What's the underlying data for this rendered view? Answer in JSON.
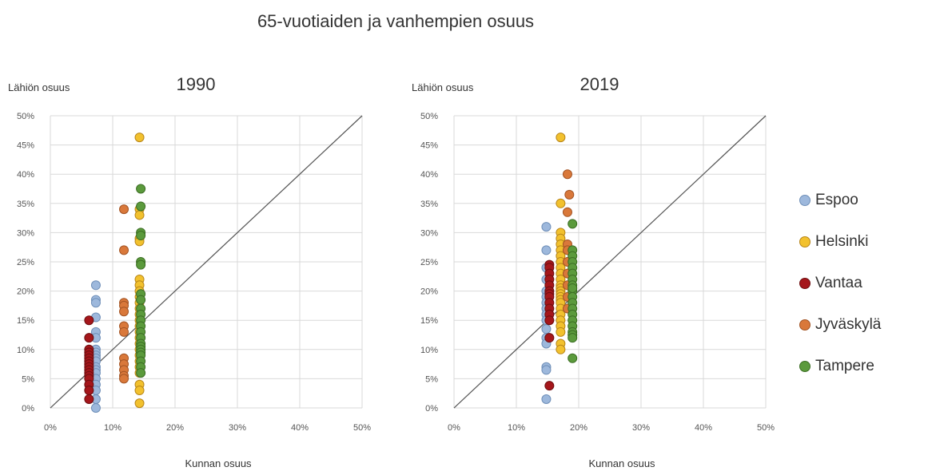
{
  "title": "65-vuotiaiden ja vanhempien osuus",
  "legend": [
    {
      "name": "Espoo",
      "color": "#9DB8DC",
      "edge": "#6F8FB8"
    },
    {
      "name": "Helsinki",
      "color": "#F2C12E",
      "edge": "#B8861A"
    },
    {
      "name": "Vantaa",
      "color": "#A5161B",
      "edge": "#6E0E10"
    },
    {
      "name": "Jyväskylä",
      "color": "#D9783A",
      "edge": "#A35424"
    },
    {
      "name": "Tampere",
      "color": "#5B9A3C",
      "edge": "#3C6E24"
    }
  ],
  "chart_data": [
    {
      "type": "scatter",
      "title": "1990",
      "xlabel": "Kunnan osuus",
      "ylabel": "Lähiön osuus",
      "xlim": [
        0,
        50
      ],
      "ylim": [
        0,
        50
      ],
      "xticks": [
        "0%",
        "10%",
        "20%",
        "30%",
        "40%",
        "50%"
      ],
      "yticks": [
        "0%",
        "5%",
        "10%",
        "15%",
        "20%",
        "25%",
        "30%",
        "35%",
        "40%",
        "45%",
        "50%"
      ],
      "grid": true,
      "reference_line": "y = x",
      "series": [
        {
          "name": "Espoo",
          "x": [
            7.3,
            7.3,
            7.3,
            7.3,
            7.3,
            7.3,
            7.3,
            7.3,
            7.3,
            7.3,
            7.3,
            7.3,
            7.3,
            7.3,
            7.3,
            7.3,
            7.3,
            7.3,
            7.3
          ],
          "y": [
            21.0,
            18.5,
            18.0,
            15.5,
            13.0,
            12.0,
            10.0,
            9.5,
            9.0,
            8.5,
            8.0,
            7.0,
            6.5,
            6.0,
            5.0,
            4.0,
            3.0,
            1.5,
            0.0
          ]
        },
        {
          "name": "Helsinki",
          "x": [
            14.3,
            14.3,
            14.3,
            14.3,
            14.3,
            14.3,
            14.3,
            14.3,
            14.3,
            14.3,
            14.3,
            14.3,
            14.3,
            14.3,
            14.3,
            14.3,
            14.3,
            14.3,
            14.3,
            14.3,
            14.3,
            14.3,
            14.3,
            14.3,
            14.3
          ],
          "y": [
            46.3,
            34.0,
            33.0,
            29.0,
            28.5,
            22.0,
            21.0,
            20.0,
            19.0,
            18.0,
            17.0,
            16.0,
            15.0,
            14.0,
            13.0,
            12.0,
            11.0,
            10.0,
            9.0,
            8.0,
            7.0,
            6.0,
            4.0,
            3.0,
            0.8
          ]
        },
        {
          "name": "Vantaa",
          "x": [
            6.2,
            6.2,
            6.2,
            6.2,
            6.2,
            6.2,
            6.2,
            6.2,
            6.2,
            6.2,
            6.2,
            6.2,
            6.2,
            6.2,
            6.2,
            6.2
          ],
          "y": [
            15.0,
            12.0,
            10.0,
            9.5,
            9.0,
            8.5,
            8.0,
            7.5,
            7.0,
            6.5,
            6.0,
            5.5,
            5.0,
            4.0,
            3.0,
            1.5
          ]
        },
        {
          "name": "Jyväskylä",
          "x": [
            11.8,
            11.8,
            11.8,
            11.8,
            11.8,
            11.8,
            11.8,
            11.8,
            11.8,
            11.8,
            11.8,
            11.8
          ],
          "y": [
            34.0,
            27.0,
            18.0,
            17.5,
            16.5,
            14.0,
            13.0,
            8.5,
            7.5,
            6.5,
            5.5,
            5.0
          ]
        },
        {
          "name": "Tampere",
          "x": [
            14.5,
            14.5,
            14.5,
            14.5,
            14.5,
            14.5,
            14.5,
            14.5,
            14.5,
            14.5,
            14.5,
            14.5,
            14.5,
            14.5,
            14.5,
            14.5,
            14.5,
            14.5,
            14.5,
            14.5,
            14.5,
            14.5
          ],
          "y": [
            37.5,
            34.5,
            30.0,
            29.5,
            25.0,
            24.5,
            19.5,
            18.5,
            17.0,
            16.0,
            15.0,
            14.0,
            13.0,
            12.0,
            11.0,
            10.5,
            10.0,
            9.5,
            9.0,
            8.0,
            7.0,
            6.0
          ]
        }
      ]
    },
    {
      "type": "scatter",
      "title": "2019",
      "xlabel": "Kunnan osuus",
      "ylabel": "Lähiön osuus",
      "xlim": [
        0,
        50
      ],
      "ylim": [
        0,
        50
      ],
      "xticks": [
        "0%",
        "10%",
        "20%",
        "30%",
        "40%",
        "50%"
      ],
      "yticks": [
        "0%",
        "5%",
        "10%",
        "15%",
        "20%",
        "25%",
        "30%",
        "35%",
        "40%",
        "45%",
        "50%"
      ],
      "grid": true,
      "reference_line": "y = x",
      "series": [
        {
          "name": "Espoo",
          "x": [
            14.8,
            14.8,
            14.8,
            14.8,
            14.8,
            14.8,
            14.8,
            14.8,
            14.8,
            14.8,
            14.8,
            14.8,
            14.8,
            14.8,
            14.8,
            14.8
          ],
          "y": [
            31.0,
            27.0,
            24.0,
            22.0,
            20.0,
            19.0,
            18.0,
            17.0,
            16.0,
            15.0,
            13.5,
            12.0,
            11.0,
            7.0,
            6.5,
            1.5
          ]
        },
        {
          "name": "Helsinki",
          "x": [
            17.1,
            17.1,
            17.1,
            17.1,
            17.1,
            17.1,
            17.1,
            17.1,
            17.1,
            17.1,
            17.1,
            17.1,
            17.1,
            17.1,
            17.1,
            17.1,
            17.1,
            17.1,
            17.1,
            17.1,
            17.1,
            17.1,
            17.1,
            17.1,
            17.1
          ],
          "y": [
            46.3,
            35.0,
            30.0,
            29.0,
            28.0,
            27.0,
            26.0,
            25.0,
            24.0,
            23.0,
            22.0,
            21.0,
            20.5,
            20.0,
            19.5,
            19.0,
            18.5,
            18.0,
            17.0,
            16.0,
            15.0,
            14.0,
            13.0,
            11.0,
            10.0
          ]
        },
        {
          "name": "Vantaa",
          "x": [
            15.3,
            15.3,
            15.3,
            15.3,
            15.3,
            15.3,
            15.3,
            15.3,
            15.3,
            15.3,
            15.3,
            15.3,
            15.3,
            15.3
          ],
          "y": [
            24.5,
            24.0,
            23.0,
            22.0,
            21.0,
            20.0,
            19.5,
            19.0,
            18.0,
            17.0,
            16.0,
            15.0,
            12.0,
            3.8
          ]
        },
        {
          "name": "Jyväskylä",
          "x": [
            18.2,
            18.5,
            18.2,
            18.2,
            18.2,
            18.2,
            18.2,
            18.2,
            18.2,
            18.2
          ],
          "y": [
            40.0,
            36.5,
            33.5,
            28.0,
            27.0,
            25.0,
            23.0,
            21.0,
            19.0,
            17.0
          ]
        },
        {
          "name": "Tampere",
          "x": [
            19.0,
            19.0,
            19.0,
            19.0,
            19.0,
            19.0,
            19.0,
            19.0,
            19.0,
            19.0,
            19.0,
            19.0,
            19.0,
            19.0,
            19.0,
            19.0,
            19.0,
            19.0,
            19.0,
            19.0
          ],
          "y": [
            31.5,
            27.0,
            26.0,
            25.0,
            24.0,
            23.0,
            22.0,
            21.0,
            20.0,
            19.0,
            18.0,
            17.0,
            16.0,
            15.0,
            14.0,
            13.0,
            12.5,
            12.0,
            8.5,
            20.5
          ]
        }
      ]
    }
  ]
}
